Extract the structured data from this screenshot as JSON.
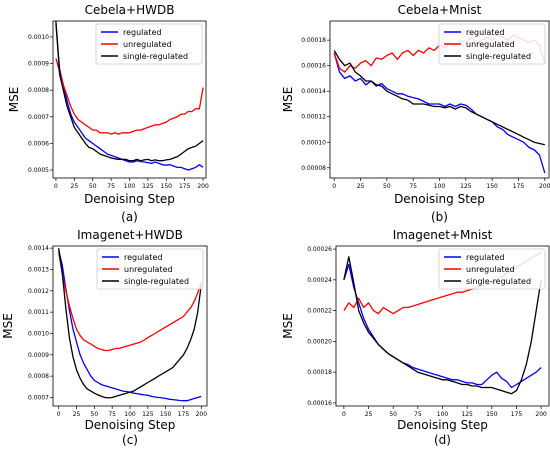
{
  "legend_labels": [
    "regulated",
    "unregulated",
    "single-regulated"
  ],
  "colors": {
    "regulated": "#0000ff",
    "unregulated": "#ff0000",
    "single-regulated": "#000000"
  },
  "chart_data": [
    {
      "type": "line",
      "title": "Cebela+HWDB",
      "label": "(a)",
      "xlabel": "Denoising Step",
      "ylabel": "MSE",
      "xlim": [
        -4,
        204
      ],
      "ylim": [
        0.00047,
        0.00106
      ],
      "xticks": [
        0,
        25,
        50,
        75,
        100,
        125,
        150,
        175,
        200
      ],
      "yticks": [
        0.0005,
        0.0006,
        0.0007,
        0.0008,
        0.0009,
        0.001
      ],
      "ytick_labels": [
        "0.0005",
        "0.0006",
        "0.0007",
        "0.0008",
        "0.0009",
        "0.0010"
      ],
      "legend_position": "top-right",
      "x": [
        0,
        5,
        10,
        15,
        20,
        25,
        30,
        35,
        40,
        45,
        50,
        55,
        60,
        65,
        70,
        75,
        80,
        85,
        90,
        95,
        100,
        105,
        110,
        115,
        120,
        125,
        130,
        135,
        140,
        145,
        150,
        155,
        160,
        165,
        170,
        175,
        180,
        185,
        190,
        195,
        200
      ],
      "series": [
        {
          "name": "regulated",
          "values": [
            0.00105,
            0.00088,
            0.00082,
            0.00076,
            0.00071,
            0.00068,
            0.00066,
            0.00064,
            0.00062,
            0.00061,
            0.0006,
            0.00059,
            0.00058,
            0.00057,
            0.00056,
            0.000555,
            0.00055,
            0.000545,
            0.00054,
            0.000535,
            0.00053,
            0.00053,
            0.000535,
            0.000532,
            0.00053,
            0.000528,
            0.000525,
            0.00053,
            0.000525,
            0.00052,
            0.000518,
            0.00052,
            0.000515,
            0.00051,
            0.00051,
            0.000505,
            0.0005,
            0.000505,
            0.00051,
            0.00052,
            0.00051
          ]
        },
        {
          "name": "unregulated",
          "values": [
            0.00092,
            0.00087,
            0.00082,
            0.00078,
            0.00074,
            0.00071,
            0.00069,
            0.00068,
            0.00067,
            0.00066,
            0.00065,
            0.00065,
            0.00064,
            0.00064,
            0.00064,
            0.000635,
            0.00064,
            0.000635,
            0.00064,
            0.00064,
            0.00064,
            0.000645,
            0.00065,
            0.00065,
            0.000655,
            0.00066,
            0.000665,
            0.00067,
            0.00067,
            0.000675,
            0.00068,
            0.00069,
            0.000695,
            0.0007,
            0.00071,
            0.00071,
            0.00072,
            0.00072,
            0.00073,
            0.00073,
            0.00081
          ]
        },
        {
          "name": "single-regulated",
          "values": [
            0.00106,
            0.00086,
            0.0008,
            0.00074,
            0.0007,
            0.00066,
            0.00064,
            0.00062,
            0.0006,
            0.000585,
            0.00058,
            0.00057,
            0.00056,
            0.000555,
            0.00055,
            0.000545,
            0.000542,
            0.00054,
            0.00054,
            0.00054,
            0.000535,
            0.000535,
            0.00054,
            0.000535,
            0.000538,
            0.00054,
            0.000535,
            0.000538,
            0.000535,
            0.000535,
            0.000538,
            0.00054,
            0.000545,
            0.00055,
            0.00056,
            0.00057,
            0.00058,
            0.000585,
            0.00059,
            0.0006,
            0.00061
          ]
        }
      ]
    },
    {
      "type": "line",
      "title": "Cebela+Mnist",
      "label": "(b)",
      "xlabel": "Denoising Step",
      "ylabel": "MSE",
      "xlim": [
        -4,
        204
      ],
      "ylim": [
        7.2e-05,
        0.000195
      ],
      "xticks": [
        0,
        25,
        50,
        75,
        100,
        125,
        150,
        175,
        200
      ],
      "yticks": [
        8e-05,
        0.0001,
        0.00012,
        0.00014,
        0.00016,
        0.00018
      ],
      "ytick_labels": [
        "0.00008",
        "0.00010",
        "0.00012",
        "0.00014",
        "0.00016",
        "0.00018"
      ],
      "legend_position": "top-right",
      "x": [
        0,
        5,
        10,
        15,
        20,
        25,
        30,
        35,
        40,
        45,
        50,
        55,
        60,
        65,
        70,
        75,
        80,
        85,
        90,
        95,
        100,
        105,
        110,
        115,
        120,
        125,
        130,
        135,
        140,
        145,
        150,
        155,
        160,
        165,
        170,
        175,
        180,
        185,
        190,
        195,
        200
      ],
      "series": [
        {
          "name": "regulated",
          "values": [
            0.00017,
            0.000155,
            0.00015,
            0.000152,
            0.000148,
            0.00015,
            0.000145,
            0.000148,
            0.000144,
            0.000146,
            0.000142,
            0.00014,
            0.000138,
            0.000138,
            0.000136,
            0.000135,
            0.000134,
            0.000132,
            0.00013,
            0.00013,
            0.00013,
            0.000128,
            0.00013,
            0.000128,
            0.00013,
            0.000129,
            0.000126,
            0.000122,
            0.00012,
            0.000118,
            0.000116,
            0.000112,
            0.00011,
            0.000106,
            0.000104,
            0.000102,
            0.0001,
            9.6e-05,
            9.4e-05,
            9e-05,
            7.6e-05
          ]
        },
        {
          "name": "unregulated",
          "values": [
            0.00017,
            0.000158,
            0.000155,
            0.00016,
            0.000158,
            0.000162,
            0.000164,
            0.00016,
            0.000166,
            0.000165,
            0.000168,
            0.00017,
            0.000165,
            0.00017,
            0.000172,
            0.000168,
            0.000172,
            0.00017,
            0.000174,
            0.000172,
            0.000176,
            0.000174,
            0.000178,
            0.000176,
            0.00018,
            0.000178,
            0.000182,
            0.000178,
            0.00018,
            0.000182,
            0.00018,
            0.000184,
            0.000182,
            0.00018,
            0.000184,
            0.000182,
            0.00018,
            0.000178,
            0.00018,
            0.000176,
            0.000162
          ]
        },
        {
          "name": "single-regulated",
          "values": [
            0.000172,
            0.000165,
            0.00016,
            0.000162,
            0.000155,
            0.000152,
            0.000148,
            0.000148,
            0.000145,
            0.000144,
            0.00014,
            0.000138,
            0.000136,
            0.000134,
            0.000133,
            0.00013,
            0.00013,
            0.00013,
            0.000129,
            0.000128,
            0.000128,
            0.000127,
            0.000128,
            0.000126,
            0.000128,
            0.000127,
            0.000124,
            0.000122,
            0.00012,
            0.000118,
            0.000116,
            0.000114,
            0.000112,
            0.00011,
            0.000108,
            0.000106,
            0.000104,
            0.000102,
            0.0001,
            9.9e-05,
            9.8e-05
          ]
        }
      ]
    },
    {
      "type": "line",
      "title": "Imagenet+HWDB",
      "label": "(c)",
      "xlabel": "Denoising Step",
      "ylabel": "MSE",
      "xlim": [
        -8,
        208
      ],
      "ylim": [
        0.00066,
        0.00141
      ],
      "xticks": [
        0,
        25,
        50,
        75,
        100,
        125,
        150,
        175,
        200
      ],
      "yticks": [
        0.0007,
        0.0008,
        0.0009,
        0.001,
        0.0011,
        0.0012,
        0.0013,
        0.0014
      ],
      "ytick_labels": [
        "0.0007",
        "0.0008",
        "0.0009",
        "0.0010",
        "0.0011",
        "0.0012",
        "0.0013",
        "0.0014"
      ],
      "legend_position": "top-right",
      "x": [
        0,
        5,
        10,
        15,
        20,
        25,
        30,
        35,
        40,
        45,
        50,
        55,
        60,
        65,
        70,
        75,
        80,
        85,
        90,
        95,
        100,
        105,
        110,
        115,
        120,
        125,
        130,
        135,
        140,
        145,
        150,
        155,
        160,
        165,
        170,
        175,
        180,
        185,
        190,
        195,
        200
      ],
      "series": [
        {
          "name": "regulated",
          "values": [
            0.00139,
            0.00132,
            0.00121,
            0.00111,
            0.00102,
            0.00096,
            0.0009,
            0.00086,
            0.00083,
            0.0008,
            0.00078,
            0.00077,
            0.00076,
            0.000755,
            0.00075,
            0.000745,
            0.00074,
            0.000735,
            0.00073,
            0.000728,
            0.000725,
            0.00072,
            0.000718,
            0.000715,
            0.000712,
            0.00071,
            0.000705,
            0.000702,
            0.0007,
            0.000698,
            0.000695,
            0.000692,
            0.00069,
            0.000688,
            0.000686,
            0.000685,
            0.000685,
            0.00069,
            0.000695,
            0.0007,
            0.000705
          ]
        },
        {
          "name": "unregulated",
          "values": [
            0.00138,
            0.00128,
            0.0012,
            0.00113,
            0.00107,
            0.00102,
            0.00099,
            0.00097,
            0.00096,
            0.00095,
            0.00094,
            0.00093,
            0.000925,
            0.00092,
            0.00092,
            0.000925,
            0.00093,
            0.00093,
            0.000935,
            0.00094,
            0.000945,
            0.00095,
            0.000955,
            0.00096,
            0.00097,
            0.00098,
            0.00099,
            0.001,
            0.00101,
            0.00102,
            0.00103,
            0.00104,
            0.00105,
            0.00106,
            0.00107,
            0.00108,
            0.0011,
            0.00112,
            0.00115,
            0.00119,
            0.00124
          ]
        },
        {
          "name": "single-regulated",
          "values": [
            0.0014,
            0.00128,
            0.00112,
            0.00098,
            0.00089,
            0.00083,
            0.00079,
            0.00076,
            0.00074,
            0.00073,
            0.00072,
            0.000712,
            0.000705,
            0.0007,
            0.000698,
            0.0007,
            0.000705,
            0.00071,
            0.000715,
            0.00072,
            0.000725,
            0.00073,
            0.00074,
            0.00075,
            0.00076,
            0.00077,
            0.00078,
            0.00079,
            0.0008,
            0.00081,
            0.00082,
            0.00083,
            0.00084,
            0.00086,
            0.00088,
            0.0009,
            0.00093,
            0.00097,
            0.00102,
            0.0011,
            0.00123
          ]
        }
      ]
    },
    {
      "type": "line",
      "title": "Imagenet+Mnist",
      "label": "(d)",
      "xlabel": "Denoising Step",
      "ylabel": "MSE",
      "xlim": [
        -8,
        208
      ],
      "ylim": [
        0.000158,
        0.000262
      ],
      "xticks": [
        0,
        25,
        50,
        75,
        100,
        125,
        150,
        175,
        200
      ],
      "yticks": [
        0.00016,
        0.00018,
        0.0002,
        0.00022,
        0.00024,
        0.00026
      ],
      "ytick_labels": [
        "0.00016",
        "0.00018",
        "0.00020",
        "0.00022",
        "0.00024",
        "0.00026"
      ],
      "legend_position": "top-right",
      "x": [
        0,
        5,
        10,
        15,
        20,
        25,
        30,
        35,
        40,
        45,
        50,
        55,
        60,
        65,
        70,
        75,
        80,
        85,
        90,
        95,
        100,
        105,
        110,
        115,
        120,
        125,
        130,
        135,
        140,
        145,
        150,
        155,
        160,
        165,
        170,
        175,
        180,
        185,
        190,
        195,
        200
      ],
      "series": [
        {
          "name": "regulated",
          "values": [
            0.00024,
            0.00025,
            0.000235,
            0.000225,
            0.000215,
            0.000208,
            0.000203,
            0.000198,
            0.000195,
            0.000192,
            0.00019,
            0.000188,
            0.000186,
            0.000185,
            0.000183,
            0.000182,
            0.000181,
            0.00018,
            0.000179,
            0.000178,
            0.000177,
            0.000176,
            0.000175,
            0.000175,
            0.000174,
            0.000173,
            0.000173,
            0.000172,
            0.000172,
            0.000175,
            0.000178,
            0.00018,
            0.000176,
            0.000174,
            0.00017,
            0.000172,
            0.000174,
            0.000176,
            0.000178,
            0.00018,
            0.000183
          ]
        },
        {
          "name": "unregulated",
          "values": [
            0.00022,
            0.000225,
            0.000222,
            0.000228,
            0.000222,
            0.000225,
            0.00022,
            0.000218,
            0.000222,
            0.00022,
            0.000218,
            0.00022,
            0.000222,
            0.000222,
            0.000223,
            0.000224,
            0.000225,
            0.000226,
            0.000227,
            0.000228,
            0.000229,
            0.00023,
            0.000231,
            0.000232,
            0.000232,
            0.000233,
            0.000234,
            0.000235,
            0.000236,
            0.000237,
            0.000238,
            0.00024,
            0.000242,
            0.000244,
            0.000246,
            0.000248,
            0.00025,
            0.000252,
            0.000254,
            0.000256,
            0.000258
          ]
        },
        {
          "name": "single-regulated",
          "values": [
            0.00024,
            0.000255,
            0.000238,
            0.00022,
            0.000212,
            0.000206,
            0.000202,
            0.000198,
            0.000195,
            0.000192,
            0.00019,
            0.000188,
            0.000186,
            0.000184,
            0.000182,
            0.00018,
            0.000179,
            0.000178,
            0.000177,
            0.000176,
            0.000175,
            0.000175,
            0.000174,
            0.000173,
            0.000172,
            0.000172,
            0.000171,
            0.000171,
            0.00017,
            0.00017,
            0.00017,
            0.000169,
            0.000168,
            0.000167,
            0.000166,
            0.000168,
            0.000175,
            0.000185,
            0.0002,
            0.00022,
            0.00024
          ]
        }
      ]
    }
  ]
}
